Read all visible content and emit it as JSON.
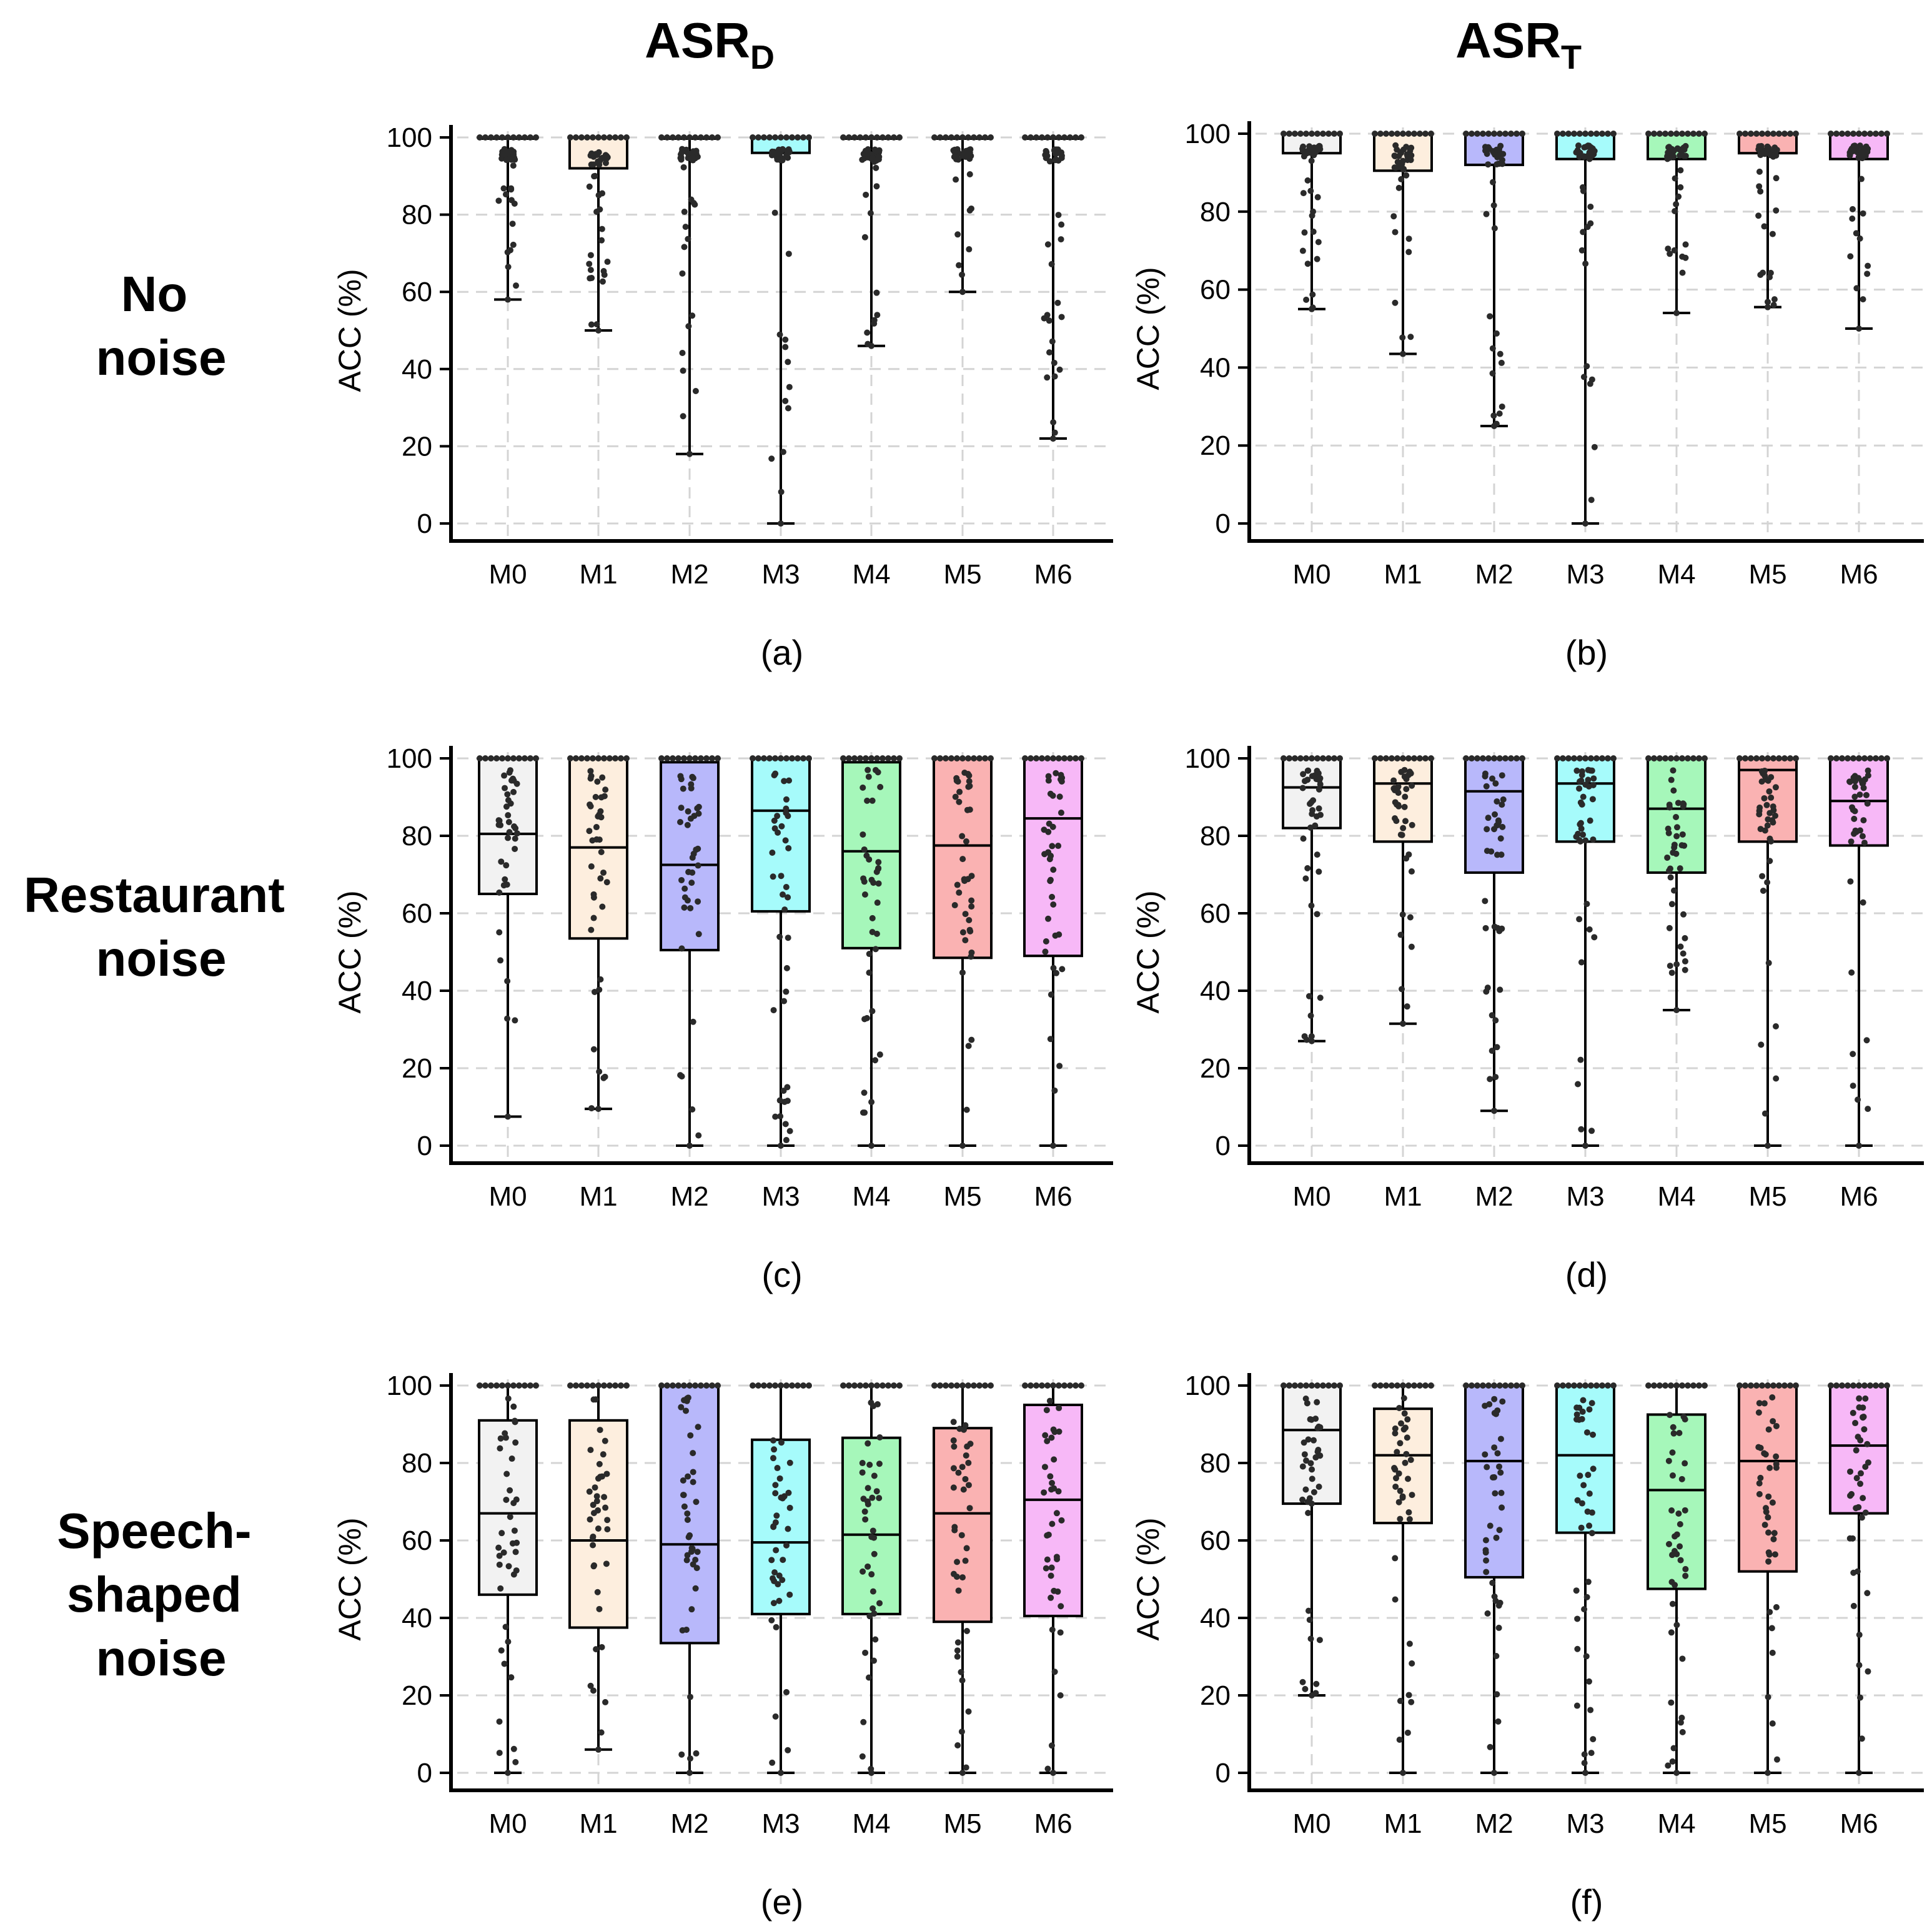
{
  "columns": [
    {
      "main": "ASR",
      "sub": "D"
    },
    {
      "main": "ASR",
      "sub": "T"
    }
  ],
  "rows": [
    {
      "line1": "No",
      "line2": "noise",
      "line3": ""
    },
    {
      "line1": "Restaurant",
      "line2": "noise",
      "line3": ""
    },
    {
      "line1": "Speech-",
      "line2": "shaped",
      "line3": "noise"
    }
  ],
  "colors": {
    "M0": "#f2f2f2",
    "M1": "#fdeede",
    "M2": "#b8b8fb",
    "M3": "#a6fbfb",
    "M4": "#a6f7ba",
    "M5": "#fab2b2",
    "M6": "#f7b8f7"
  },
  "chart_data": [
    {
      "panel": "(a)",
      "type": "box",
      "ylabel": "ACC (%)",
      "ylim": [
        0,
        100
      ],
      "yticks": [
        "0",
        "20",
        "40",
        "60",
        "80",
        "100"
      ],
      "categories": [
        "M0",
        "M1",
        "M2",
        "M3",
        "M4",
        "M5",
        "M6"
      ],
      "boxes": [
        {
          "q1": 100,
          "median": 100,
          "q3": 100,
          "min": 58,
          "max": 100
        },
        {
          "q1": 92,
          "median": 100,
          "q3": 100,
          "min": 50,
          "max": 100
        },
        {
          "q1": 100,
          "median": 100,
          "q3": 100,
          "min": 18,
          "max": 100
        },
        {
          "q1": 96,
          "median": 100,
          "q3": 100,
          "min": 0,
          "max": 100
        },
        {
          "q1": 100,
          "median": 100,
          "q3": 100,
          "min": 46,
          "max": 100
        },
        {
          "q1": 100,
          "median": 100,
          "q3": 100,
          "min": 60,
          "max": 100
        },
        {
          "q1": 100,
          "median": 100,
          "q3": 100,
          "min": 22,
          "max": 100
        }
      ]
    },
    {
      "panel": "(b)",
      "type": "box",
      "ylabel": "ACC (%)",
      "ylim": [
        0,
        100
      ],
      "yticks": [
        "0",
        "20",
        "40",
        "60",
        "80",
        "100"
      ],
      "categories": [
        "M0",
        "M1",
        "M2",
        "M3",
        "M4",
        "M5",
        "M6"
      ],
      "boxes": [
        {
          "q1": 95,
          "median": 100,
          "q3": 100,
          "min": 55,
          "max": 100
        },
        {
          "q1": 90.5,
          "median": 100,
          "q3": 100,
          "min": 43.5,
          "max": 100
        },
        {
          "q1": 92,
          "median": 100,
          "q3": 100,
          "min": 25,
          "max": 100
        },
        {
          "q1": 93.5,
          "median": 100,
          "q3": 100,
          "min": 0,
          "max": 100
        },
        {
          "q1": 93.5,
          "median": 100,
          "q3": 100,
          "min": 54,
          "max": 100
        },
        {
          "q1": 95,
          "median": 100,
          "q3": 100,
          "min": 55.5,
          "max": 100
        },
        {
          "q1": 93.5,
          "median": 100,
          "q3": 100,
          "min": 50,
          "max": 100
        }
      ]
    },
    {
      "panel": "(c)",
      "type": "box",
      "ylabel": "ACC (%)",
      "ylim": [
        0,
        100
      ],
      "yticks": [
        "0",
        "20",
        "40",
        "60",
        "80",
        "100"
      ],
      "categories": [
        "M0",
        "M1",
        "M2",
        "M3",
        "M4",
        "M5",
        "M6"
      ],
      "boxes": [
        {
          "q1": 65,
          "median": 80.5,
          "q3": 100,
          "min": 7.5,
          "max": 100
        },
        {
          "q1": 53.5,
          "median": 77,
          "q3": 100,
          "min": 9.5,
          "max": 100
        },
        {
          "q1": 50.5,
          "median": 72.5,
          "q3": 99,
          "min": 0,
          "max": 100
        },
        {
          "q1": 60.5,
          "median": 86.5,
          "q3": 100,
          "min": 0,
          "max": 100
        },
        {
          "q1": 51,
          "median": 76,
          "q3": 99,
          "min": 0,
          "max": 100
        },
        {
          "q1": 48.5,
          "median": 77.5,
          "q3": 100,
          "min": 0,
          "max": 100
        },
        {
          "q1": 49,
          "median": 84.5,
          "q3": 100,
          "min": 0,
          "max": 100
        }
      ]
    },
    {
      "panel": "(d)",
      "type": "box",
      "ylabel": "ACC (%)",
      "ylim": [
        0,
        100
      ],
      "yticks": [
        "0",
        "20",
        "40",
        "60",
        "80",
        "100"
      ],
      "categories": [
        "M0",
        "M1",
        "M2",
        "M3",
        "M4",
        "M5",
        "M6"
      ],
      "boxes": [
        {
          "q1": 82,
          "median": 92.5,
          "q3": 100,
          "min": 27,
          "max": 100
        },
        {
          "q1": 78.5,
          "median": 93.5,
          "q3": 100,
          "min": 31.5,
          "max": 100
        },
        {
          "q1": 70.5,
          "median": 91.5,
          "q3": 100,
          "min": 9,
          "max": 100
        },
        {
          "q1": 78.5,
          "median": 93.5,
          "q3": 100,
          "min": 0,
          "max": 100
        },
        {
          "q1": 70.5,
          "median": 87,
          "q3": 100,
          "min": 35,
          "max": 100
        },
        {
          "q1": 78.5,
          "median": 97,
          "q3": 100,
          "min": 0,
          "max": 100
        },
        {
          "q1": 77.5,
          "median": 89,
          "q3": 100,
          "min": 0,
          "max": 100
        }
      ]
    },
    {
      "panel": "(e)",
      "type": "box",
      "ylabel": "ACC (%)",
      "ylim": [
        0,
        100
      ],
      "yticks": [
        "0",
        "20",
        "40",
        "60",
        "80",
        "100"
      ],
      "categories": [
        "M0",
        "M1",
        "M2",
        "M3",
        "M4",
        "M5",
        "M6"
      ],
      "boxes": [
        {
          "q1": 46,
          "median": 67,
          "q3": 91,
          "min": 0,
          "max": 100
        },
        {
          "q1": 37.5,
          "median": 60,
          "q3": 91,
          "min": 6,
          "max": 100
        },
        {
          "q1": 33.5,
          "median": 59,
          "q3": 100,
          "min": 0,
          "max": 100
        },
        {
          "q1": 41,
          "median": 59.5,
          "q3": 86,
          "min": 0,
          "max": 100
        },
        {
          "q1": 41,
          "median": 61.5,
          "q3": 86.5,
          "min": 0,
          "max": 100
        },
        {
          "q1": 39,
          "median": 67,
          "q3": 89,
          "min": 0,
          "max": 100
        },
        {
          "q1": 40.5,
          "median": 70.5,
          "q3": 95,
          "min": 0,
          "max": 100
        }
      ]
    },
    {
      "panel": "(f)",
      "type": "box",
      "ylabel": "ACC (%)",
      "ylim": [
        0,
        100
      ],
      "yticks": [
        "0",
        "20",
        "40",
        "60",
        "80",
        "100"
      ],
      "categories": [
        "M0",
        "M1",
        "M2",
        "M3",
        "M4",
        "M5",
        "M6"
      ],
      "boxes": [
        {
          "q1": 69.5,
          "median": 88.5,
          "q3": 100,
          "min": 20,
          "max": 100
        },
        {
          "q1": 64.5,
          "median": 82,
          "q3": 94,
          "min": 0,
          "max": 100
        },
        {
          "q1": 50.5,
          "median": 80.5,
          "q3": 100,
          "min": 0,
          "max": 100
        },
        {
          "q1": 62,
          "median": 82,
          "q3": 100,
          "min": 0,
          "max": 100
        },
        {
          "q1": 47.5,
          "median": 73,
          "q3": 92.5,
          "min": 0,
          "max": 100
        },
        {
          "q1": 52,
          "median": 80.5,
          "q3": 100,
          "min": 0,
          "max": 100
        },
        {
          "q1": 67,
          "median": 84.5,
          "q3": 100,
          "min": 0,
          "max": 100
        }
      ]
    }
  ]
}
